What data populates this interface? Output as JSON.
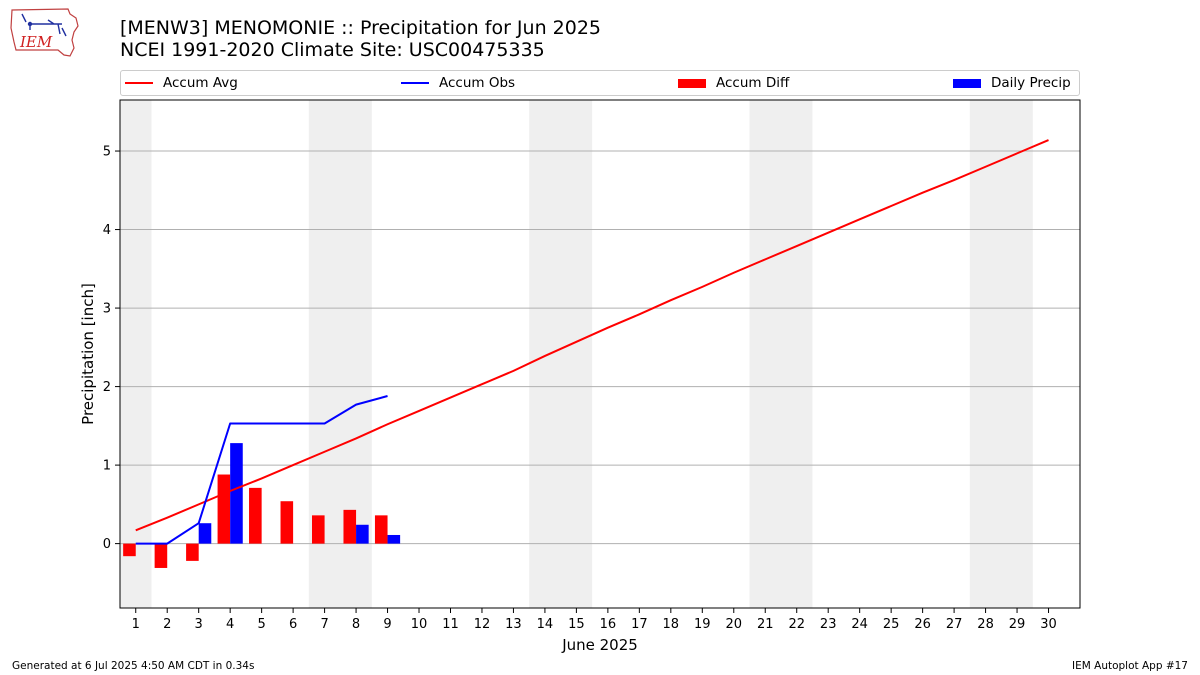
{
  "header": {
    "logo_text": "IEM",
    "title_line1": "[MENW3] MENOMONIE :: Precipitation for Jun 2025",
    "title_line2": "NCEI 1991-2020 Climate Site: USC00475335"
  },
  "footer": {
    "generated": "Generated at 6 Jul 2025 4:50 AM CDT in 0.34s",
    "app": "IEM Autoplot App #17"
  },
  "colors": {
    "avg": "#ff0000",
    "obs": "#0000ff",
    "diff": "#ff0000",
    "daily": "#0000ff",
    "weekend_shade": "#efefef",
    "grid": "#b0b0b0"
  },
  "chart_data": {
    "type": "bar",
    "xlabel": "June 2025",
    "ylabel": "Precipitation [inch]",
    "xlim": [
      0.5,
      31
    ],
    "ylim": [
      -0.82,
      5.65
    ],
    "yticks": [
      0,
      1,
      2,
      3,
      4,
      5
    ],
    "xticks": [
      1,
      2,
      3,
      4,
      5,
      6,
      7,
      8,
      9,
      10,
      11,
      12,
      13,
      14,
      15,
      16,
      17,
      18,
      19,
      20,
      21,
      22,
      23,
      24,
      25,
      26,
      27,
      28,
      29,
      30
    ],
    "grid": "horizontal",
    "legend_position": "top",
    "shaded_days": [
      [
        1,
        1
      ],
      [
        7,
        8
      ],
      [
        14,
        15
      ],
      [
        21,
        22
      ],
      [
        28,
        29
      ]
    ],
    "series": [
      {
        "name": "Accum Avg",
        "kind": "line",
        "x": [
          1,
          2,
          3,
          4,
          5,
          6,
          7,
          8,
          9,
          10,
          11,
          12,
          13,
          14,
          15,
          16,
          17,
          18,
          19,
          20,
          21,
          22,
          23,
          24,
          25,
          26,
          27,
          28,
          29,
          30
        ],
        "values": [
          0.17,
          0.33,
          0.5,
          0.67,
          0.83,
          1.0,
          1.17,
          1.34,
          1.52,
          1.69,
          1.86,
          2.03,
          2.2,
          2.39,
          2.57,
          2.75,
          2.92,
          3.1,
          3.27,
          3.45,
          3.62,
          3.79,
          3.96,
          4.13,
          4.3,
          4.47,
          4.63,
          4.8,
          4.97,
          5.14
        ]
      },
      {
        "name": "Accum Obs",
        "kind": "line",
        "x": [
          1,
          2,
          3,
          4,
          5,
          6,
          7,
          8,
          9
        ],
        "values": [
          0.0,
          0.0,
          0.26,
          1.53,
          1.53,
          1.53,
          1.53,
          1.77,
          1.88
        ]
      },
      {
        "name": "Accum Diff",
        "kind": "bar",
        "x": [
          1,
          2,
          3,
          4,
          5,
          6,
          7,
          8,
          9
        ],
        "values": [
          -0.16,
          -0.31,
          -0.22,
          0.88,
          0.71,
          0.54,
          0.36,
          0.43,
          0.36
        ]
      },
      {
        "name": "Daily Precip",
        "kind": "bar",
        "x": [
          1,
          2,
          3,
          4,
          5,
          6,
          7,
          8,
          9
        ],
        "values": [
          0.0,
          0.0,
          0.26,
          1.28,
          0.0,
          0.0,
          0.0,
          0.24,
          0.11
        ]
      }
    ]
  }
}
